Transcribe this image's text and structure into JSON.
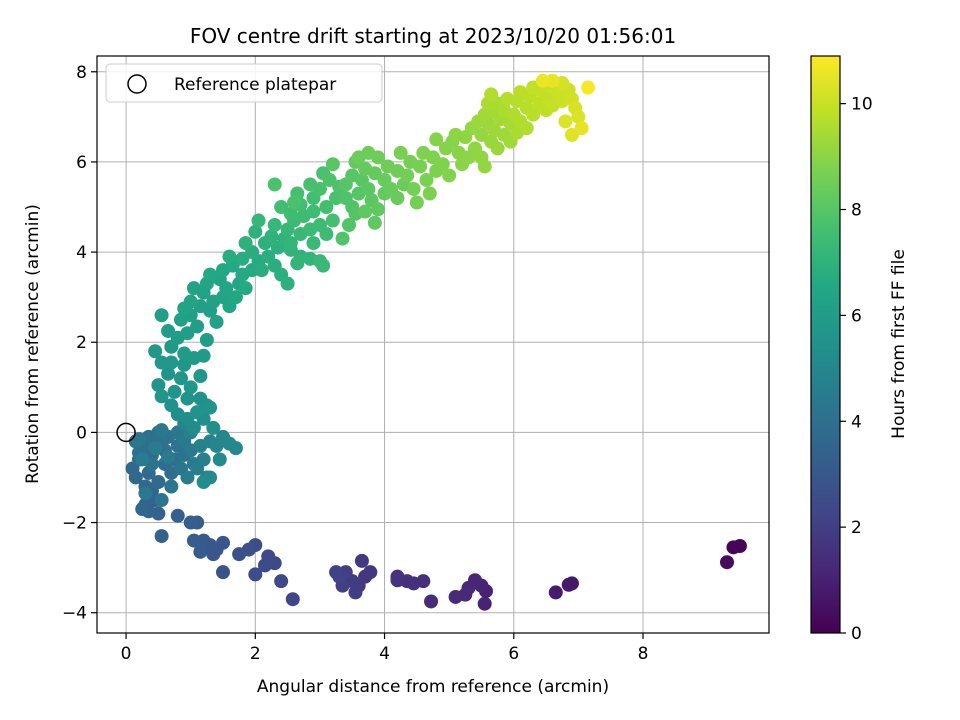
{
  "chart_data": {
    "type": "scatter",
    "title": "FOV centre drift starting at 2023/10/20 01:56:01",
    "xlabel": "Angular distance from reference (arcmin)",
    "ylabel": "Rotation from reference (arcmin)",
    "xlim": [
      -0.45,
      9.95
    ],
    "ylim": [
      -4.45,
      8.35
    ],
    "xticks": [
      0,
      2,
      4,
      6,
      8
    ],
    "yticks": [
      -4,
      -2,
      0,
      2,
      4,
      6,
      8
    ],
    "grid": true,
    "legend": {
      "label": "Reference platepar",
      "position": "top-left"
    },
    "reference_point": {
      "x": 0.0,
      "y": 0.0
    },
    "colorbar": {
      "label": "Hours from first FF file",
      "min": 0,
      "max": 10.9,
      "ticks": [
        0,
        2,
        4,
        6,
        8,
        10
      ],
      "colormap": "viridis"
    },
    "points": [
      [
        9.4,
        -2.55,
        0.1
      ],
      [
        9.5,
        -2.52,
        0.15
      ],
      [
        9.3,
        -2.88,
        0.3
      ],
      [
        6.9,
        -3.35,
        0.7
      ],
      [
        6.85,
        -3.38,
        0.75
      ],
      [
        6.65,
        -3.55,
        0.85
      ],
      [
        5.57,
        -3.52,
        1.0
      ],
      [
        5.55,
        -3.8,
        1.05
      ],
      [
        5.5,
        -3.4,
        1.1
      ],
      [
        5.4,
        -3.28,
        1.15
      ],
      [
        5.3,
        -3.45,
        1.2
      ],
      [
        5.25,
        -3.6,
        1.25
      ],
      [
        5.1,
        -3.65,
        1.3
      ],
      [
        4.72,
        -3.75,
        1.4
      ],
      [
        4.6,
        -3.3,
        1.45
      ],
      [
        4.45,
        -3.35,
        1.5
      ],
      [
        4.35,
        -3.3,
        1.55
      ],
      [
        4.2,
        -3.2,
        1.6
      ],
      [
        4.2,
        -3.28,
        1.65
      ],
      [
        3.78,
        -3.1,
        1.7
      ],
      [
        3.7,
        -3.2,
        1.75
      ],
      [
        3.65,
        -2.85,
        1.8
      ],
      [
        3.6,
        -3.4,
        1.85
      ],
      [
        3.55,
        -3.55,
        1.9
      ],
      [
        3.5,
        -3.3,
        1.95
      ],
      [
        3.4,
        -3.1,
        2.0
      ],
      [
        3.35,
        -3.4,
        2.05
      ],
      [
        3.3,
        -3.2,
        2.1
      ],
      [
        3.25,
        -3.1,
        2.15
      ],
      [
        2.58,
        -3.7,
        2.3
      ],
      [
        2.4,
        -3.3,
        2.35
      ],
      [
        2.3,
        -2.9,
        2.4
      ],
      [
        2.2,
        -2.75,
        2.45
      ],
      [
        2.15,
        -2.95,
        2.5
      ],
      [
        2.0,
        -3.15,
        2.55
      ],
      [
        2.0,
        -2.5,
        2.6
      ],
      [
        1.9,
        -2.6,
        2.65
      ],
      [
        1.75,
        -2.7,
        2.7
      ],
      [
        1.5,
        -3.1,
        2.8
      ],
      [
        1.5,
        -2.45,
        2.85
      ],
      [
        1.4,
        -2.6,
        2.9
      ],
      [
        1.35,
        -2.7,
        2.95
      ],
      [
        1.3,
        -2.5,
        3.0
      ],
      [
        1.2,
        -2.4,
        3.05
      ],
      [
        1.15,
        -2.65,
        3.1
      ],
      [
        1.1,
        -2.0,
        3.15
      ],
      [
        1.05,
        -2.4,
        3.2
      ],
      [
        1.0,
        -2.0,
        3.25
      ],
      [
        0.8,
        -1.85,
        3.3
      ],
      [
        0.55,
        -2.3,
        3.35
      ],
      [
        0.5,
        -1.8,
        3.4
      ],
      [
        0.45,
        -1.5,
        3.45
      ],
      [
        0.35,
        -1.75,
        3.5
      ],
      [
        0.3,
        -1.6,
        3.55
      ],
      [
        0.25,
        -1.7,
        3.6
      ],
      [
        0.4,
        -1.3,
        3.62
      ],
      [
        0.3,
        -1.2,
        3.65
      ],
      [
        0.15,
        -1.0,
        3.7
      ],
      [
        0.1,
        -0.8,
        3.72
      ],
      [
        0.2,
        -0.6,
        3.75
      ],
      [
        0.35,
        -0.9,
        3.78
      ],
      [
        0.5,
        -1.1,
        3.8
      ],
      [
        0.6,
        -0.7,
        3.82
      ],
      [
        0.4,
        -0.5,
        3.85
      ],
      [
        0.25,
        -0.3,
        3.88
      ],
      [
        0.45,
        -0.2,
        3.9
      ],
      [
        0.6,
        -0.4,
        3.92
      ],
      [
        0.7,
        -0.9,
        3.95
      ],
      [
        0.75,
        -0.6,
        3.98
      ],
      [
        0.55,
        -0.3,
        4.0
      ],
      [
        0.35,
        -0.1,
        4.02
      ],
      [
        0.5,
        0.0,
        4.05
      ],
      [
        0.65,
        -0.1,
        4.08
      ],
      [
        0.8,
        -0.3,
        4.1
      ],
      [
        0.2,
        -0.45,
        4.12
      ],
      [
        0.15,
        -0.2,
        4.15
      ],
      [
        0.4,
        -0.7,
        4.18
      ],
      [
        0.9,
        -0.5,
        4.2
      ],
      [
        0.85,
        -0.8,
        4.22
      ],
      [
        0.7,
        -1.2,
        4.25
      ],
      [
        0.55,
        -1.5,
        4.28
      ],
      [
        0.3,
        -1.35,
        4.3
      ],
      [
        0.2,
        -0.15,
        4.32
      ],
      [
        0.55,
        0.05,
        4.35
      ],
      [
        0.8,
        0.0,
        4.38
      ],
      [
        0.9,
        -0.2,
        4.4
      ],
      [
        1.0,
        -0.4,
        4.42
      ],
      [
        1.05,
        -0.7,
        4.45
      ],
      [
        0.95,
        -1.0,
        4.48
      ],
      [
        0.65,
        -0.55,
        4.5
      ],
      [
        0.45,
        -0.35,
        4.52
      ],
      [
        0.25,
        -0.6,
        4.55
      ],
      [
        1.1,
        -0.8,
        4.6
      ],
      [
        1.2,
        -0.6,
        4.65
      ],
      [
        1.25,
        -1.0,
        4.7
      ],
      [
        1.15,
        -0.3,
        4.75
      ],
      [
        1.3,
        -0.2,
        4.8
      ],
      [
        1.0,
        0.0,
        4.85
      ],
      [
        0.9,
        0.2,
        4.9
      ],
      [
        1.4,
        -0.3,
        4.95
      ],
      [
        1.5,
        -0.1,
        5.0
      ],
      [
        1.6,
        -0.25,
        5.05
      ],
      [
        1.7,
        -0.35,
        5.1
      ],
      [
        1.45,
        -0.6,
        5.15
      ],
      [
        1.3,
        -1.0,
        5.2
      ],
      [
        1.2,
        -1.1,
        5.25
      ],
      [
        0.95,
        0.3,
        5.3
      ],
      [
        1.05,
        0.1,
        5.32
      ],
      [
        1.2,
        0.3,
        5.35
      ],
      [
        1.35,
        0.1,
        5.38
      ],
      [
        1.25,
        0.6,
        5.4
      ],
      [
        0.8,
        0.4,
        5.42
      ],
      [
        0.7,
        0.6,
        5.45
      ],
      [
        1.1,
        0.45,
        5.48
      ],
      [
        1.3,
        0.55,
        5.5
      ],
      [
        1.15,
        0.75,
        5.52
      ],
      [
        0.95,
        0.75,
        5.55
      ],
      [
        0.75,
        0.9,
        5.58
      ],
      [
        0.55,
        0.8,
        5.6
      ],
      [
        0.5,
        1.05,
        5.62
      ],
      [
        0.65,
        1.3,
        5.65
      ],
      [
        0.85,
        1.2,
        5.68
      ],
      [
        1.0,
        1.0,
        5.7
      ],
      [
        1.15,
        1.25,
        5.72
      ],
      [
        0.9,
        1.5,
        5.75
      ],
      [
        0.7,
        1.55,
        5.78
      ],
      [
        0.55,
        1.55,
        5.8
      ],
      [
        0.45,
        1.8,
        5.82
      ],
      [
        0.7,
        1.9,
        5.85
      ],
      [
        0.9,
        1.75,
        5.88
      ],
      [
        1.05,
        1.65,
        5.9
      ],
      [
        1.2,
        1.7,
        5.92
      ],
      [
        0.8,
        2.1,
        5.95
      ],
      [
        0.65,
        2.25,
        5.98
      ],
      [
        0.95,
        2.2,
        6.0
      ],
      [
        1.1,
        2.35,
        6.02
      ],
      [
        1.25,
        2.05,
        6.05
      ],
      [
        0.55,
        2.6,
        6.08
      ],
      [
        0.85,
        2.5,
        6.1
      ],
      [
        1.0,
        2.6,
        6.12
      ],
      [
        1.15,
        2.8,
        6.15
      ],
      [
        1.3,
        2.7,
        6.18
      ],
      [
        1.4,
        2.45,
        6.2
      ],
      [
        1.35,
        2.9,
        6.22
      ],
      [
        1.2,
        3.1,
        6.25
      ],
      [
        1.0,
        2.9,
        6.28
      ],
      [
        0.9,
        2.75,
        6.3
      ],
      [
        1.05,
        3.2,
        6.32
      ],
      [
        1.25,
        3.3,
        6.35
      ],
      [
        1.5,
        3.0,
        6.38
      ],
      [
        1.6,
        2.8,
        6.4
      ],
      [
        1.45,
        3.4,
        6.42
      ],
      [
        1.55,
        3.2,
        6.45
      ],
      [
        1.7,
        3.0,
        6.48
      ],
      [
        1.75,
        3.3,
        6.5
      ],
      [
        1.3,
        3.5,
        6.52
      ],
      [
        1.5,
        3.6,
        6.55
      ],
      [
        1.65,
        3.7,
        6.58
      ],
      [
        1.8,
        3.5,
        6.6
      ],
      [
        1.85,
        3.2,
        6.62
      ],
      [
        1.95,
        3.6,
        6.65
      ],
      [
        2.05,
        3.8,
        6.68
      ],
      [
        1.6,
        3.9,
        6.7
      ],
      [
        1.8,
        3.85,
        6.72
      ],
      [
        1.95,
        4.0,
        6.75
      ],
      [
        2.1,
        3.6,
        6.78
      ],
      [
        2.2,
        3.9,
        6.8
      ],
      [
        2.3,
        3.7,
        6.82
      ],
      [
        2.4,
        3.5,
        6.85
      ],
      [
        2.5,
        3.3,
        6.88
      ],
      [
        2.35,
        4.1,
        6.9
      ],
      [
        2.15,
        4.2,
        6.92
      ],
      [
        1.85,
        4.2,
        6.95
      ],
      [
        2.0,
        4.45,
        6.98
      ],
      [
        2.25,
        4.35,
        7.0
      ],
      [
        2.45,
        4.3,
        7.02
      ],
      [
        2.55,
        4.05,
        7.05
      ],
      [
        2.7,
        3.9,
        7.08
      ],
      [
        2.85,
        3.85,
        7.1
      ],
      [
        2.65,
        3.75,
        7.12
      ],
      [
        2.55,
        4.2,
        7.15
      ],
      [
        2.3,
        4.6,
        7.18
      ],
      [
        2.05,
        4.7,
        7.2
      ],
      [
        2.5,
        4.5,
        7.22
      ],
      [
        2.7,
        4.4,
        7.25
      ],
      [
        2.9,
        4.2,
        7.28
      ],
      [
        3.0,
        3.8,
        7.3
      ],
      [
        3.05,
        3.7,
        7.32
      ],
      [
        2.85,
        4.5,
        7.35
      ],
      [
        2.6,
        4.7,
        7.38
      ],
      [
        2.75,
        4.8,
        7.4
      ],
      [
        3.0,
        4.6,
        7.42
      ],
      [
        3.1,
        4.4,
        7.45
      ],
      [
        2.9,
        4.9,
        7.48
      ],
      [
        2.55,
        4.85,
        7.5
      ],
      [
        2.4,
        5.0,
        7.52
      ],
      [
        2.7,
        5.05,
        7.55
      ],
      [
        2.9,
        5.2,
        7.58
      ],
      [
        3.1,
        5.0,
        7.6
      ],
      [
        3.2,
        4.7,
        7.62
      ],
      [
        2.65,
        5.3,
        7.65
      ],
      [
        2.85,
        5.5,
        7.68
      ],
      [
        3.0,
        5.4,
        7.7
      ],
      [
        3.25,
        5.2,
        7.72
      ],
      [
        2.3,
        5.5,
        7.74
      ],
      [
        2.6,
        5.1,
        7.75
      ],
      [
        3.05,
        5.75,
        7.78
      ],
      [
        3.15,
        5.6,
        7.8
      ],
      [
        3.3,
        5.45,
        7.82
      ],
      [
        3.4,
        5.2,
        7.85
      ],
      [
        3.5,
        5.0,
        7.88
      ],
      [
        3.35,
        4.3,
        7.9
      ],
      [
        3.45,
        4.6,
        7.92
      ],
      [
        3.55,
        4.85,
        7.95
      ],
      [
        3.6,
        5.3,
        7.98
      ],
      [
        3.4,
        5.5,
        8.0
      ],
      [
        3.5,
        5.7,
        8.02
      ],
      [
        3.2,
        5.95,
        8.05
      ],
      [
        3.65,
        5.6,
        8.08
      ],
      [
        3.75,
        5.4,
        8.1
      ],
      [
        3.8,
        5.15,
        8.12
      ],
      [
        3.7,
        4.9,
        8.15
      ],
      [
        3.85,
        4.65,
        8.18
      ],
      [
        3.9,
        4.95,
        8.2
      ],
      [
        4.0,
        5.3,
        8.22
      ],
      [
        3.55,
        6.0,
        8.25
      ],
      [
        3.7,
        5.85,
        8.28
      ],
      [
        3.85,
        5.75,
        8.3
      ],
      [
        4.0,
        5.6,
        8.32
      ],
      [
        4.1,
        5.4,
        8.35
      ],
      [
        4.2,
        5.2,
        8.38
      ],
      [
        4.3,
        5.5,
        8.4
      ],
      [
        3.6,
        6.1,
        8.42
      ],
      [
        3.75,
        6.2,
        8.45
      ],
      [
        3.9,
        6.1,
        8.48
      ],
      [
        4.05,
        5.9,
        8.5
      ],
      [
        4.2,
        5.8,
        8.52
      ],
      [
        4.35,
        5.7,
        8.55
      ],
      [
        4.45,
        5.4,
        8.58
      ],
      [
        4.5,
        5.1,
        8.6
      ],
      [
        4.4,
        6.0,
        8.62
      ],
      [
        4.25,
        6.2,
        8.65
      ],
      [
        4.55,
        5.9,
        8.68
      ],
      [
        4.65,
        5.6,
        8.7
      ],
      [
        4.7,
        5.3,
        8.72
      ],
      [
        4.8,
        5.8,
        8.75
      ],
      [
        4.6,
        6.2,
        8.78
      ],
      [
        4.75,
        6.1,
        8.8
      ],
      [
        4.9,
        5.95,
        8.82
      ],
      [
        5.0,
        5.7,
        8.85
      ],
      [
        4.95,
        6.3,
        8.88
      ],
      [
        4.8,
        6.5,
        8.9
      ],
      [
        5.05,
        6.45,
        8.92
      ],
      [
        5.15,
        6.2,
        8.95
      ],
      [
        5.2,
        5.95,
        8.98
      ],
      [
        5.3,
        6.1,
        9.0
      ],
      [
        5.1,
        6.6,
        9.02
      ],
      [
        5.25,
        6.55,
        9.05
      ],
      [
        5.4,
        6.3,
        9.08
      ],
      [
        5.5,
        6.1,
        9.1
      ],
      [
        5.55,
        5.9,
        9.12
      ],
      [
        5.35,
        6.75,
        9.15
      ],
      [
        5.5,
        6.6,
        9.18
      ],
      [
        5.65,
        6.45,
        9.2
      ],
      [
        5.75,
        6.3,
        9.22
      ],
      [
        5.45,
        6.9,
        9.25
      ],
      [
        5.6,
        6.85,
        9.28
      ],
      [
        5.7,
        6.7,
        9.3
      ],
      [
        5.85,
        6.6,
        9.32
      ],
      [
        5.95,
        6.45,
        9.35
      ],
      [
        5.55,
        7.05,
        9.38
      ],
      [
        5.7,
        7.1,
        9.4
      ],
      [
        5.8,
        6.95,
        9.42
      ],
      [
        5.95,
        6.85,
        9.45
      ],
      [
        6.05,
        6.65,
        9.48
      ],
      [
        5.6,
        7.3,
        9.5
      ],
      [
        5.75,
        7.3,
        9.52
      ],
      [
        5.85,
        7.15,
        9.55
      ],
      [
        6.0,
        7.05,
        9.58
      ],
      [
        6.1,
        6.9,
        9.6
      ],
      [
        6.2,
        6.75,
        9.62
      ],
      [
        5.65,
        7.5,
        9.65
      ],
      [
        5.9,
        7.4,
        9.68
      ],
      [
        6.05,
        7.35,
        9.7
      ],
      [
        6.2,
        7.2,
        9.72
      ],
      [
        6.3,
        7.05,
        9.75
      ],
      [
        6.1,
        7.55,
        9.78
      ],
      [
        6.25,
        7.45,
        9.8
      ],
      [
        6.4,
        7.3,
        9.82
      ],
      [
        6.5,
        7.15,
        9.85
      ],
      [
        6.3,
        7.65,
        9.88
      ],
      [
        6.45,
        7.55,
        9.9
      ],
      [
        6.55,
        7.4,
        9.92
      ],
      [
        6.6,
        7.25,
        9.95
      ],
      [
        6.5,
        7.7,
        9.98
      ],
      [
        6.65,
        7.65,
        10.0
      ],
      [
        6.7,
        7.5,
        10.02
      ],
      [
        6.75,
        7.35,
        10.05
      ],
      [
        6.85,
        7.6,
        10.1
      ],
      [
        6.9,
        7.4,
        10.15
      ],
      [
        6.75,
        7.75,
        10.2
      ],
      [
        6.95,
        7.2,
        10.25
      ],
      [
        7.0,
        7.0,
        10.3
      ],
      [
        6.8,
        6.9,
        10.35
      ],
      [
        6.9,
        6.6,
        10.4
      ],
      [
        7.05,
        6.75,
        10.5
      ],
      [
        6.6,
        7.8,
        10.55
      ],
      [
        6.45,
        7.8,
        10.6
      ],
      [
        7.15,
        7.65,
        10.85
      ]
    ]
  }
}
